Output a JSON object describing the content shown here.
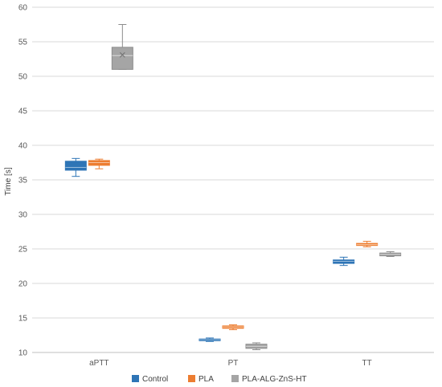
{
  "chart_data": {
    "type": "boxplot",
    "title": "",
    "xlabel": "",
    "ylabel": "Time [s]",
    "ylim": [
      10,
      60
    ],
    "yticks": [
      10,
      15,
      20,
      25,
      30,
      35,
      40,
      45,
      50,
      55,
      60
    ],
    "grid": "horizontal",
    "legend_position": "bottom",
    "categories": [
      "aPTT",
      "PT",
      "TT"
    ],
    "series": [
      {
        "name": "Control",
        "color": "#2E75B6",
        "boxes": [
          {
            "min": 35.5,
            "q1": 36.4,
            "median": 36.8,
            "q3": 37.7,
            "max": 38.1
          },
          {
            "min": 11.6,
            "q1": 11.7,
            "median": 11.85,
            "q3": 11.95,
            "max": 12.1
          },
          {
            "min": 22.6,
            "q1": 22.9,
            "median": 23.2,
            "q3": 23.4,
            "max": 23.8
          }
        ]
      },
      {
        "name": "PLA",
        "color": "#ED7D31",
        "boxes": [
          {
            "min": 36.6,
            "q1": 37.1,
            "median": 37.5,
            "q3": 37.8,
            "max": 38.0
          },
          {
            "min": 13.3,
            "q1": 13.5,
            "median": 13.7,
            "q3": 13.85,
            "max": 14.0
          },
          {
            "min": 25.3,
            "q1": 25.5,
            "median": 25.65,
            "q3": 25.8,
            "max": 26.1
          }
        ]
      },
      {
        "name": "PLA-ALG-ZnS-HT",
        "color": "#A5A5A5",
        "boxes": [
          {
            "min": 51.0,
            "q1": 51.0,
            "median": 53.0,
            "mean": 53.1,
            "q3": 54.2,
            "max": 57.5
          },
          {
            "min": 10.4,
            "q1": 10.6,
            "median": 10.9,
            "q3": 11.2,
            "max": 11.4
          },
          {
            "min": 23.9,
            "q1": 24.0,
            "median": 24.2,
            "q3": 24.4,
            "max": 24.6
          }
        ]
      }
    ]
  }
}
